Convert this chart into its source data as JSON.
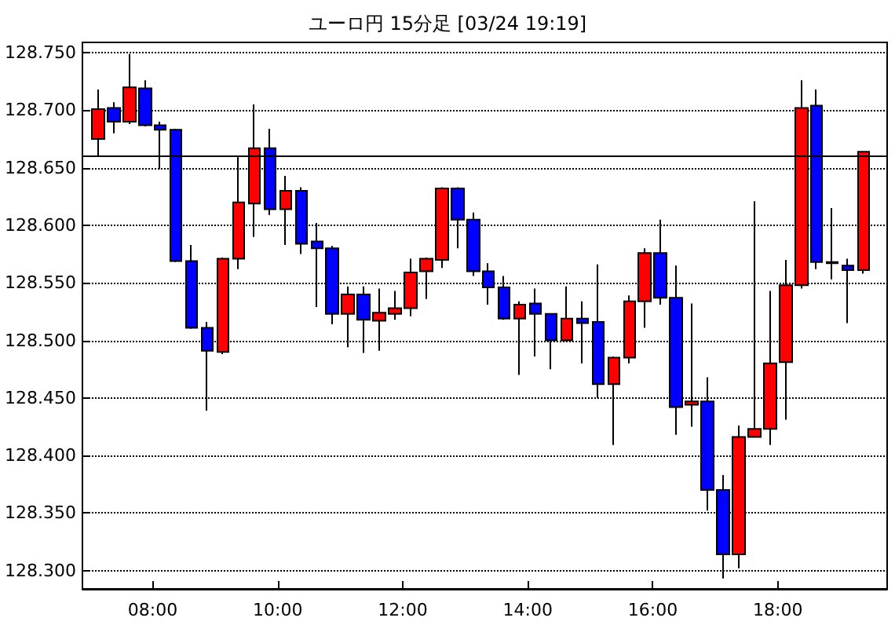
{
  "chart_data": {
    "type": "candlestick",
    "title": "ユーロ円 15分足 [03/24 19:19]",
    "x": [
      7.125,
      7.375,
      7.625,
      7.875,
      8.125,
      8.375,
      8.625,
      8.875,
      9.125,
      9.375,
      9.625,
      9.875,
      10.125,
      10.375,
      10.625,
      10.875,
      11.125,
      11.375,
      11.625,
      11.875,
      12.125,
      12.375,
      12.625,
      12.875,
      13.125,
      13.375,
      13.625,
      13.875,
      14.125,
      14.375,
      14.625,
      14.875,
      15.125,
      15.375,
      15.625,
      15.875,
      16.125,
      16.375,
      16.625,
      16.875,
      17.125,
      17.375,
      17.625,
      17.875,
      18.125,
      18.375,
      18.625,
      18.875,
      19.125,
      19.375
    ],
    "ohlc": [
      [
        128.675,
        128.718,
        128.66,
        128.701
      ],
      [
        128.702,
        128.707,
        128.68,
        128.69
      ],
      [
        128.69,
        128.749,
        128.688,
        128.72
      ],
      [
        128.719,
        128.726,
        128.686,
        128.687
      ],
      [
        128.687,
        128.69,
        128.649,
        128.683
      ],
      [
        128.683,
        128.684,
        128.568,
        128.569
      ],
      [
        128.569,
        128.583,
        128.51,
        128.511
      ],
      [
        128.511,
        128.516,
        128.439,
        128.491
      ],
      [
        128.49,
        128.572,
        128.488,
        128.571
      ],
      [
        128.571,
        128.66,
        128.562,
        128.62
      ],
      [
        128.619,
        128.705,
        128.59,
        128.667
      ],
      [
        128.667,
        128.684,
        128.609,
        128.614
      ],
      [
        128.614,
        128.643,
        128.583,
        128.63
      ],
      [
        128.63,
        128.633,
        128.575,
        128.584
      ],
      [
        128.586,
        128.602,
        128.529,
        128.58
      ],
      [
        128.58,
        128.582,
        128.514,
        128.523
      ],
      [
        128.523,
        128.547,
        128.494,
        128.54
      ],
      [
        128.54,
        128.547,
        128.489,
        128.518
      ],
      [
        128.517,
        128.545,
        128.491,
        128.524
      ],
      [
        128.523,
        128.543,
        128.518,
        128.528
      ],
      [
        128.528,
        128.571,
        128.521,
        128.559
      ],
      [
        128.56,
        128.572,
        128.536,
        128.571
      ],
      [
        128.57,
        128.633,
        128.563,
        128.632
      ],
      [
        128.632,
        128.633,
        128.58,
        128.605
      ],
      [
        128.605,
        128.611,
        128.556,
        128.56
      ],
      [
        128.56,
        128.567,
        128.531,
        128.546
      ],
      [
        128.546,
        128.556,
        128.518,
        128.519
      ],
      [
        128.519,
        128.534,
        128.47,
        128.531
      ],
      [
        128.532,
        128.545,
        128.486,
        128.523
      ],
      [
        128.523,
        128.523,
        128.475,
        128.5
      ],
      [
        128.5,
        128.547,
        128.499,
        128.519
      ],
      [
        128.519,
        128.534,
        128.48,
        128.515
      ],
      [
        128.516,
        128.566,
        128.45,
        128.462
      ],
      [
        128.462,
        128.486,
        128.409,
        128.485
      ],
      [
        128.485,
        128.539,
        128.48,
        128.534
      ],
      [
        128.534,
        128.58,
        128.511,
        128.576
      ],
      [
        128.576,
        128.605,
        128.531,
        128.537
      ],
      [
        128.537,
        128.565,
        128.418,
        128.442
      ],
      [
        128.444,
        128.532,
        128.425,
        128.447
      ],
      [
        128.447,
        128.468,
        128.352,
        128.37
      ],
      [
        128.37,
        128.383,
        128.293,
        128.314
      ],
      [
        128.314,
        128.426,
        128.302,
        128.416
      ],
      [
        128.416,
        128.621,
        128.416,
        128.423
      ],
      [
        128.423,
        128.543,
        128.409,
        128.48
      ],
      [
        128.481,
        128.57,
        128.431,
        128.548
      ],
      [
        128.548,
        128.726,
        128.545,
        128.702
      ],
      [
        128.704,
        128.718,
        128.562,
        128.568
      ],
      [
        128.568,
        128.615,
        128.553,
        128.567
      ],
      [
        128.565,
        128.571,
        128.515,
        128.561
      ],
      [
        128.561,
        128.664,
        128.558,
        128.664
      ]
    ],
    "colors": [
      "#ff0000",
      "#0000ff",
      "#ff0000",
      "#0000ff",
      "#0000ff",
      "#0000ff",
      "#0000ff",
      "#0000ff",
      "#ff0000",
      "#ff0000",
      "#ff0000",
      "#0000ff",
      "#ff0000",
      "#0000ff",
      "#0000ff",
      "#0000ff",
      "#ff0000",
      "#0000ff",
      "#ff0000",
      "#ff0000",
      "#ff0000",
      "#ff0000",
      "#ff0000",
      "#0000ff",
      "#0000ff",
      "#0000ff",
      "#0000ff",
      "#ff0000",
      "#0000ff",
      "#0000ff",
      "#ff0000",
      "#0000ff",
      "#0000ff",
      "#ff0000",
      "#ff0000",
      "#ff0000",
      "#0000ff",
      "#0000ff",
      "#ff0000",
      "#0000ff",
      "#0000ff",
      "#ff0000",
      "#ff0000",
      "#ff0000",
      "#ff0000",
      "#ff0000",
      "#0000ff",
      "#0000ff",
      "#0000ff",
      "#ff0000"
    ],
    "xlim": [
      6.875,
      19.75
    ],
    "xticks": [
      {
        "value": 8,
        "label": "08:00"
      },
      {
        "value": 10,
        "label": "10:00"
      },
      {
        "value": 12,
        "label": "12:00"
      },
      {
        "value": 14,
        "label": "14:00"
      },
      {
        "value": 16,
        "label": "16:00"
      },
      {
        "value": 18,
        "label": "18:00"
      }
    ],
    "ylim": [
      128.284,
      128.759
    ],
    "yticks": [
      {
        "value": 128.3,
        "label": "128.300"
      },
      {
        "value": 128.35,
        "label": "128.350"
      },
      {
        "value": 128.4,
        "label": "128.400"
      },
      {
        "value": 128.45,
        "label": "128.450"
      },
      {
        "value": 128.5,
        "label": "128.500"
      },
      {
        "value": 128.55,
        "label": "128.550"
      },
      {
        "value": 128.6,
        "label": "128.600"
      },
      {
        "value": 128.65,
        "label": "128.650"
      },
      {
        "value": 128.7,
        "label": "128.700"
      },
      {
        "value": 128.75,
        "label": "128.750"
      }
    ],
    "ref_lines": [
      {
        "axis": "y",
        "value": 128.66,
        "color": "#000000"
      }
    ],
    "grid": "y"
  }
}
